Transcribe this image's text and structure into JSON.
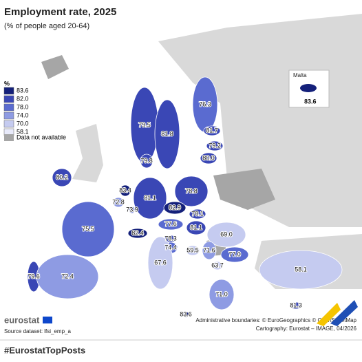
{
  "header": {
    "title": "Employment rate, 2025",
    "subtitle": "(% of people aged 20-64)"
  },
  "legend": {
    "title": "%",
    "items": [
      {
        "label": "83.6",
        "color": "#14207a"
      },
      {
        "label": "82.0",
        "color": "#3a47b5"
      },
      {
        "label": "78.0",
        "color": "#5a6bd0"
      },
      {
        "label": "74.0",
        "color": "#8e9be3"
      },
      {
        "label": "70.0",
        "color": "#c5cbf0"
      },
      {
        "label": "58.1",
        "color": "#e8eafa"
      }
    ],
    "not_available": {
      "label": "Data not available",
      "color": "#a6a6a6"
    }
  },
  "regions": [
    {
      "value": "79.5",
      "color": "#3a47b5"
    },
    {
      "value": "81.8",
      "color": "#3a47b5"
    },
    {
      "value": "76.3",
      "color": "#5a6bd0"
    },
    {
      "value": "81.7",
      "color": "#3a47b5"
    },
    {
      "value": "79.2",
      "color": "#3a47b5"
    },
    {
      "value": "80.0",
      "color": "#3a47b5"
    },
    {
      "value": "79.8",
      "color": "#3a47b5"
    },
    {
      "value": "80.2",
      "color": "#3a47b5"
    },
    {
      "value": "83.4",
      "color": "#14207a"
    },
    {
      "value": "72.8",
      "color": "#8e9be3"
    },
    {
      "value": "73.9",
      "color": "#8e9be3"
    },
    {
      "value": "81.1",
      "color": "#3a47b5"
    },
    {
      "value": "78.8",
      "color": "#3a47b5"
    },
    {
      "value": "82.9",
      "color": "#14207a"
    },
    {
      "value": "78.1",
      "color": "#3a47b5"
    },
    {
      "value": "77.6",
      "color": "#5a6bd0"
    },
    {
      "value": "81.1",
      "color": "#3a47b5"
    },
    {
      "value": "82.4",
      "color": "#14207a"
    },
    {
      "value": "75.5",
      "color": "#5a6bd0"
    },
    {
      "value": "69.0",
      "color": "#c5cbf0"
    },
    {
      "value": "78.3",
      "color": "#3a47b5"
    },
    {
      "value": "74.4",
      "color": "#5a6bd0"
    },
    {
      "value": "59.5",
      "color": "#c5cbf0"
    },
    {
      "value": "71.6",
      "color": "#8e9be3"
    },
    {
      "value": "77.0",
      "color": "#5a6bd0"
    },
    {
      "value": "63.7",
      "color": "#c5cbf0"
    },
    {
      "value": "67.6",
      "color": "#c5cbf0"
    },
    {
      "value": "71.0",
      "color": "#8e9be3"
    },
    {
      "value": "58.1",
      "color": "#c5cbf0"
    },
    {
      "value": "79.6",
      "color": "#3a47b5"
    },
    {
      "value": "72.4",
      "color": "#8e9be3"
    },
    {
      "value": "81.3",
      "color": "#3a47b5"
    },
    {
      "value": "83.6",
      "color": "#14207a"
    }
  ],
  "inset": {
    "title": "Malta",
    "value": "83.6",
    "color": "#14207a"
  },
  "footer": {
    "logo": "eurostat",
    "source": "Source dataset: lfsi_emp_a",
    "boundaries": "Administrative boundaries: © EuroGeographics © OpenStreetMap",
    "cartography": "Cartography: Eurostat – IMAGE, 04/2026",
    "hashtag": "#EurostatTopPosts"
  }
}
